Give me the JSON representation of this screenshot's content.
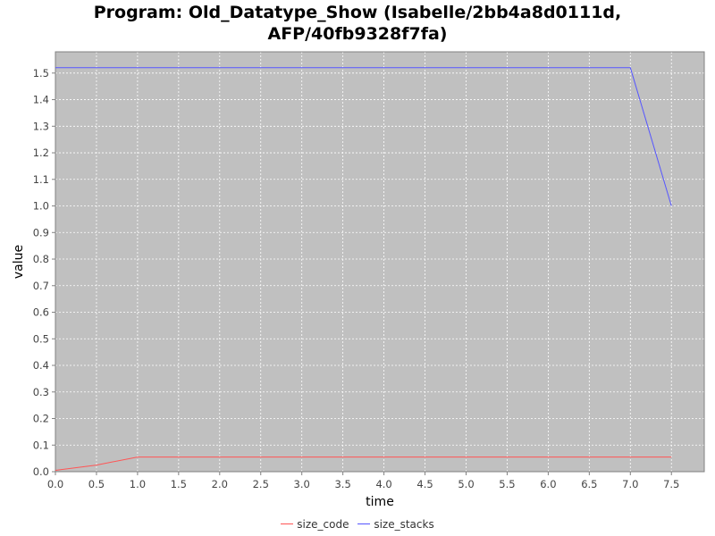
{
  "chart_data": {
    "type": "line",
    "title_line1": "Program: Old_Datatype_Show (Isabelle/2bb4a8d0111d,",
    "title_line2": "AFP/40fb9328f7fa)",
    "xlabel": "time",
    "ylabel": "value",
    "xlim": [
      0.0,
      7.9
    ],
    "ylim": [
      0.0,
      1.58
    ],
    "x_ticks": [
      "0.0",
      "0.5",
      "1.0",
      "1.5",
      "2.0",
      "2.5",
      "3.0",
      "3.5",
      "4.0",
      "4.5",
      "5.0",
      "5.5",
      "6.0",
      "6.5",
      "7.0",
      "7.5"
    ],
    "y_ticks": [
      "0.0",
      "0.1",
      "0.2",
      "0.3",
      "0.4",
      "0.5",
      "0.6",
      "0.7",
      "0.8",
      "0.9",
      "1.0",
      "1.1",
      "1.2",
      "1.3",
      "1.4",
      "1.5"
    ],
    "grid": true,
    "legend_position": "bottom-center",
    "plot_background": "#c0c0c0",
    "grid_color": "#ffffff",
    "series": [
      {
        "name": "size_code",
        "color": "#ff5555",
        "x": [
          0.0,
          0.5,
          1.0,
          1.5,
          2.0,
          2.5,
          3.0,
          3.5,
          4.0,
          4.5,
          5.0,
          5.5,
          6.0,
          6.5,
          7.0,
          7.5
        ],
        "y": [
          0.005,
          0.025,
          0.055,
          0.055,
          0.055,
          0.055,
          0.055,
          0.055,
          0.055,
          0.055,
          0.055,
          0.055,
          0.055,
          0.055,
          0.055,
          0.055
        ]
      },
      {
        "name": "size_stacks",
        "color": "#5555ff",
        "x": [
          0.0,
          0.5,
          1.0,
          1.5,
          2.0,
          2.5,
          3.0,
          3.5,
          4.0,
          4.5,
          5.0,
          5.5,
          6.0,
          6.5,
          7.0,
          7.5
        ],
        "y": [
          1.52,
          1.52,
          1.52,
          1.52,
          1.52,
          1.52,
          1.52,
          1.52,
          1.52,
          1.52,
          1.52,
          1.52,
          1.52,
          1.52,
          1.52,
          1.0
        ]
      }
    ]
  }
}
